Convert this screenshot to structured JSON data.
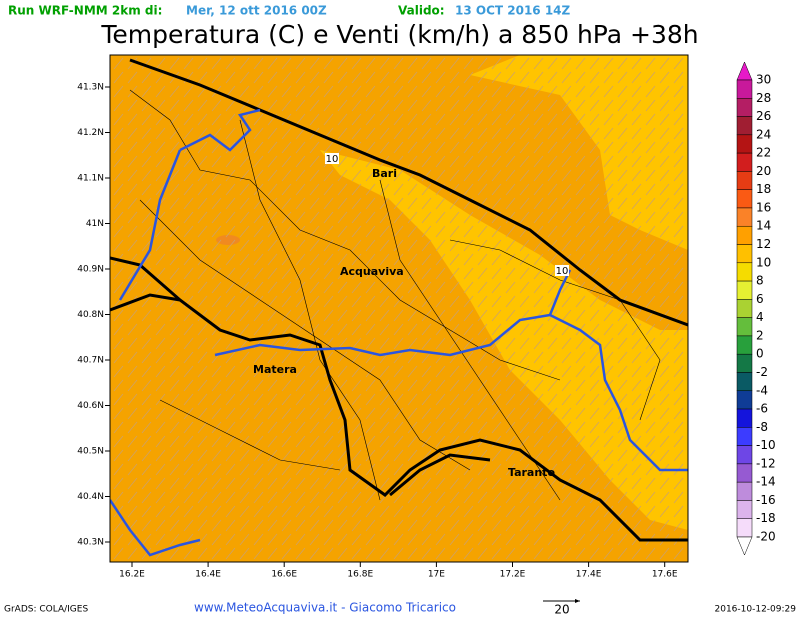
{
  "header": {
    "run_label": "Run WRF-NMM 2km di:",
    "run_date": "Mer, 12 ott 2016 00Z",
    "valid_label": "Valido:",
    "valid_date": "13 OCT 2016 14Z"
  },
  "title": "Temperatura (C) e Venti (km/h) a 850 hPa +38h",
  "map": {
    "lat_labels": [
      "41.3N",
      "41.2N",
      "41.1N",
      "41N",
      "40.9N",
      "40.8N",
      "40.7N",
      "40.6N",
      "40.5N",
      "40.4N",
      "40.3N"
    ],
    "lon_labels": [
      "16.2E",
      "16.4E",
      "16.6E",
      "16.8E",
      "17E",
      "17.2E",
      "17.4E",
      "17.6E"
    ],
    "cities": [
      "Bari",
      "Acquaviva",
      "Matera",
      "Taranto"
    ],
    "contour_labels": [
      "10",
      "10"
    ]
  },
  "colorbar": {
    "labels": [
      "30",
      "28",
      "26",
      "24",
      "22",
      "20",
      "18",
      "16",
      "14",
      "12",
      "10",
      "8",
      "6",
      "4",
      "2",
      "0",
      "-2",
      "-4",
      "-6",
      "-8",
      "-10",
      "-12",
      "-14",
      "-16",
      "-18",
      "-20"
    ],
    "colors": [
      "#e619c8",
      "#c8199b",
      "#b41e64",
      "#a01e32",
      "#b41414",
      "#d21e1e",
      "#e63c14",
      "#fa5a14",
      "#fa8228",
      "#ffa000",
      "#ffc000",
      "#f5dc00",
      "#e6f032",
      "#aad232",
      "#64be3c",
      "#28a03c",
      "#147846",
      "#0a5a64",
      "#0f3c96",
      "#1414dc",
      "#3c3cff",
      "#6e46e6",
      "#965ad2",
      "#be8cdc",
      "#dcb4ec",
      "#f5dcfa",
      "#ffffff"
    ]
  },
  "footer": {
    "left": "GrADS: COLA/IGES",
    "center": "www.MeteoAcquaviva.it - Giacomo Tricarico",
    "wind_ref": "20",
    "right": "2016-10-12-09:29"
  }
}
